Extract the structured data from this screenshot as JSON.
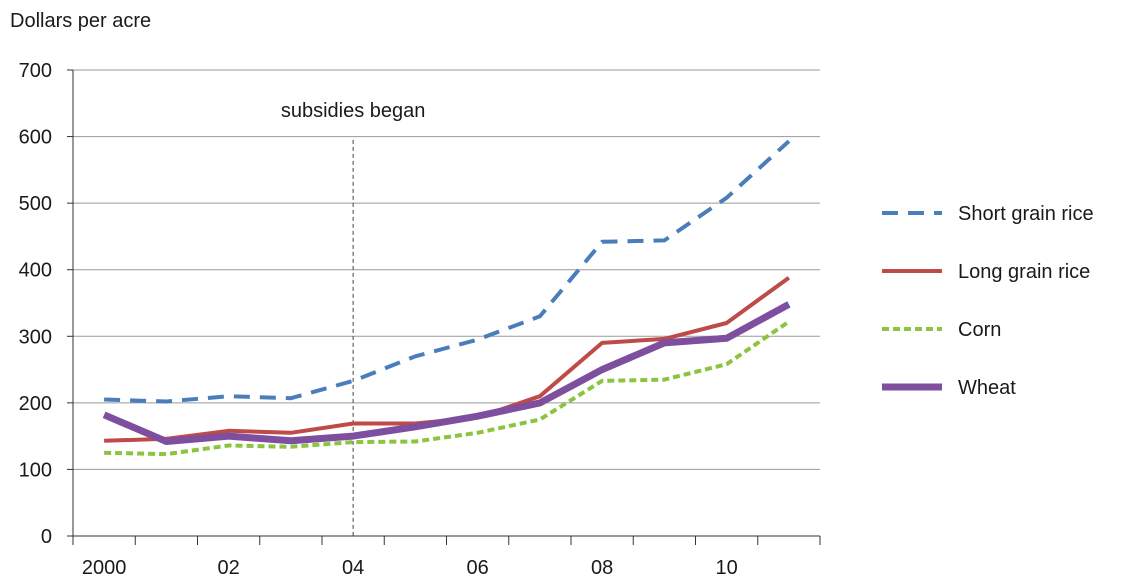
{
  "chart_data": {
    "type": "line",
    "title": "",
    "ylabel": "Dollars per acre",
    "xlabel": "",
    "x": [
      2000,
      2001,
      2002,
      2003,
      2004,
      2005,
      2006,
      2007,
      2008,
      2009,
      2010,
      2011
    ],
    "xlim": [
      1999.5,
      2011.5
    ],
    "ylim": [
      0,
      700
    ],
    "yticks": [
      0,
      100,
      200,
      300,
      400,
      500,
      600,
      700
    ],
    "xticks": [
      {
        "value": 2000,
        "label": "2000"
      },
      {
        "value": 2002,
        "label": "02"
      },
      {
        "value": 2004,
        "label": "04"
      },
      {
        "value": 2006,
        "label": "06"
      },
      {
        "value": 2008,
        "label": "08"
      },
      {
        "value": 2010,
        "label": "10"
      }
    ],
    "grid": "horizontal",
    "legend": "right",
    "annotation": {
      "text": "subsidies began",
      "x": 2004
    },
    "series": [
      {
        "name": "Short grain rice",
        "color": "#4a7ebb",
        "style": "dashed",
        "values": [
          205,
          202,
          210,
          207,
          233,
          270,
          295,
          330,
          442,
          444,
          508,
          593
        ]
      },
      {
        "name": "Long grain rice",
        "color": "#be4b48",
        "style": "solid",
        "values": [
          143,
          146,
          158,
          155,
          169,
          169,
          178,
          210,
          290,
          296,
          320,
          388
        ]
      },
      {
        "name": "Corn",
        "color": "#8bc43f",
        "style": "dotted",
        "values": [
          125,
          123,
          136,
          134,
          141,
          142,
          155,
          175,
          233,
          235,
          258,
          322
        ]
      },
      {
        "name": "Wheat",
        "color": "#7d4f9e",
        "style": "thick",
        "values": [
          182,
          142,
          150,
          143,
          150,
          164,
          180,
          200,
          250,
          290,
          297,
          348
        ]
      }
    ]
  }
}
